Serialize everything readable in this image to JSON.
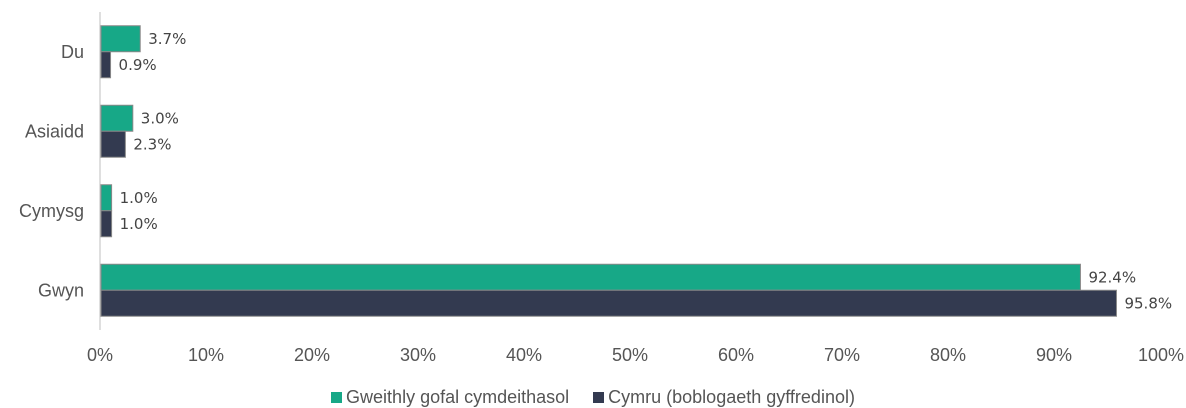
{
  "chart_data": {
    "type": "bar",
    "orientation": "horizontal",
    "categories": [
      "Du",
      "Asiaidd",
      "Cymysg",
      "Gwyn"
    ],
    "series": [
      {
        "name": "Gweithly gofal cymdeithasol",
        "color": "#17a887",
        "values": [
          3.7,
          3.0,
          1.0,
          92.4
        ],
        "labels": [
          "3.7%",
          "3.0%",
          "1.0%",
          "92.4%"
        ]
      },
      {
        "name": "Cymru (boblogaeth gyffredinol)",
        "color": "#333a50",
        "values": [
          0.9,
          2.3,
          1.0,
          95.8
        ],
        "labels": [
          "0.9%",
          "2.3%",
          "1.0%",
          "95.8%"
        ]
      }
    ],
    "xlim": [
      0,
      100
    ],
    "xticks": [
      "0%",
      "10%",
      "20%",
      "30%",
      "40%",
      "50%",
      "60%",
      "70%",
      "80%",
      "90%",
      "100%"
    ],
    "xlabel": "",
    "ylabel": "",
    "grid": false,
    "legend_position": "bottom"
  }
}
